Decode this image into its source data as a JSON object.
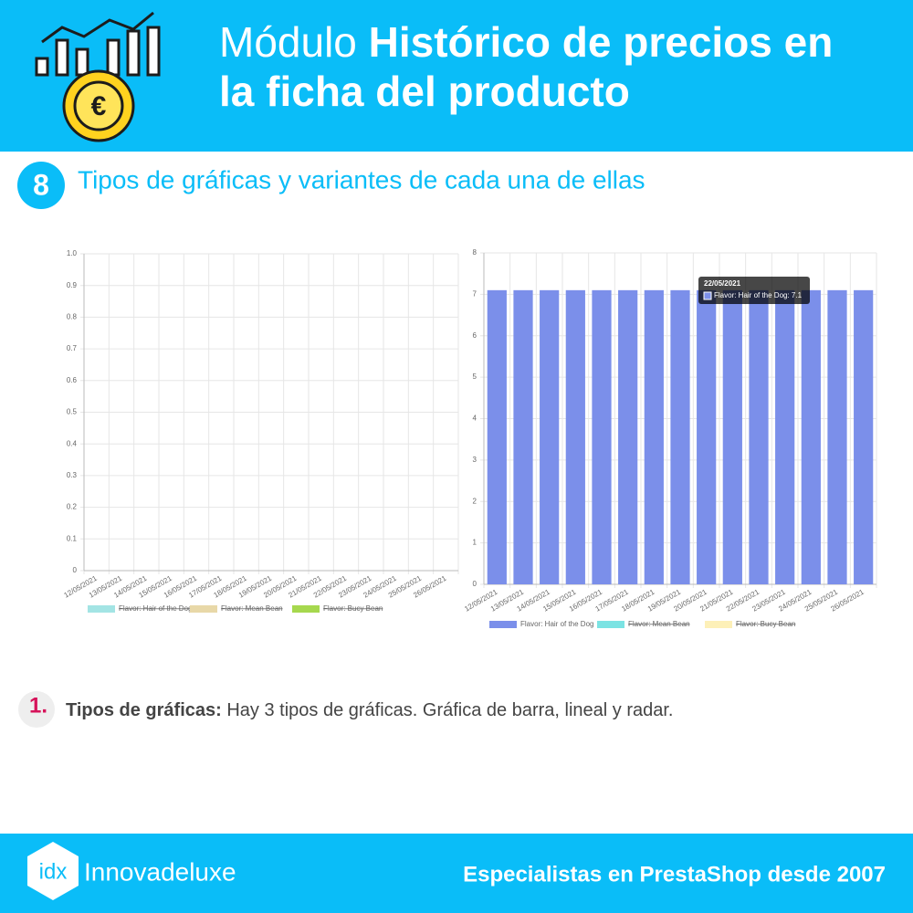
{
  "header": {
    "title": {
      "light": "Módulo",
      "bold_lines": [
        "Histórico de precios en",
        "la ficha del producto"
      ]
    }
  },
  "section": {
    "number": "8",
    "title": "Tipos de gráficas y variantes de cada una de ellas"
  },
  "chart_data": [
    {
      "type": "line",
      "categories": [
        "12/05/2021",
        "13/05/2021",
        "14/05/2021",
        "15/05/2021",
        "16/05/2021",
        "17/05/2021",
        "18/05/2021",
        "19/05/2021",
        "20/05/2021",
        "21/05/2021",
        "22/05/2021",
        "23/05/2021",
        "24/05/2021",
        "25/05/2021",
        "26/05/2021"
      ],
      "ylim": [
        0,
        1
      ],
      "yticks": [
        0,
        0.1,
        0.2,
        0.3,
        0.4,
        0.5,
        0.6,
        0.7,
        0.8,
        0.9,
        {
          "value": 1,
          "label": "1.0"
        }
      ],
      "grid": true,
      "legend": "bottom",
      "series": [
        {
          "name": "Flavor: Hair of the Dog",
          "color": "#a3e4e4",
          "hidden": true
        },
        {
          "name": "Flavor: Mean Bean",
          "color": "#e8d8a8",
          "hidden": true
        },
        {
          "name": "Flavor: Bucy Bean",
          "color": "#a6d84e",
          "hidden": true
        }
      ]
    },
    {
      "type": "bar",
      "categories": [
        "12/05/2021",
        "13/05/2021",
        "14/05/2021",
        "15/05/2021",
        "16/05/2021",
        "17/05/2021",
        "18/05/2021",
        "19/05/2021",
        "20/05/2021",
        "21/05/2021",
        "22/05/2021",
        "23/05/2021",
        "24/05/2021",
        "25/05/2021",
        "26/05/2021"
      ],
      "ylim": [
        0,
        8
      ],
      "yticks": [
        0,
        1,
        2,
        3,
        4,
        5,
        6,
        7,
        8
      ],
      "grid": true,
      "legend": "bottom",
      "series": [
        {
          "name": "Flavor: Hair of the Dog",
          "color": "#7b8fea",
          "values": [
            7.1,
            7.1,
            7.1,
            7.1,
            7.1,
            7.1,
            7.1,
            7.1,
            7.1,
            7.1,
            7.1,
            7.1,
            7.1,
            7.1,
            7.1
          ]
        },
        {
          "name": "Flavor: Mean Bean",
          "color": "#7be3e3",
          "hidden": true
        },
        {
          "name": "Flavor: Bucy Bean",
          "color": "#fdf0b8",
          "hidden": true
        }
      ],
      "tooltip": {
        "title": "22/05/2021",
        "label": "Flavor: Hair of the Dog: 7.1"
      }
    }
  ],
  "point": {
    "number": "1.",
    "bold": "Tipos de gráficas:",
    "text": "Hay 3 tipos de gráficas. Gráfica de barra, lineal y radar."
  },
  "footer": {
    "logo_mark": "idx",
    "logo_name": "Innovadeluxe",
    "slogan": "Especialistas en PrestaShop desde 2007"
  }
}
